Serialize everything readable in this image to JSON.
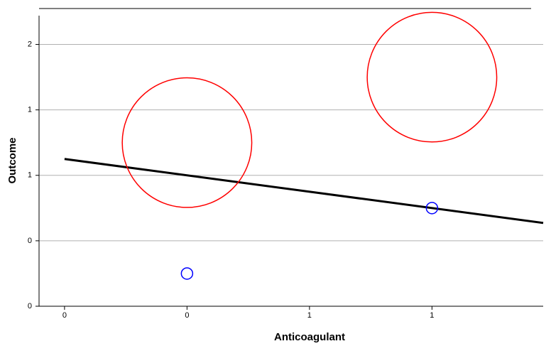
{
  "chart_data": {
    "type": "scatter",
    "x_label": "Anticoagulant",
    "y_label": "Outcome",
    "xlim": [
      -0.604,
      1.454
    ],
    "ylim": [
      0,
      2.22
    ],
    "xticks": [
      {
        "value": -0.5,
        "label": "0"
      },
      {
        "value": 0,
        "label": "0"
      },
      {
        "value": 0.5,
        "label": "1"
      },
      {
        "value": 1,
        "label": "1"
      }
    ],
    "yticks": [
      0,
      {
        "value": 0.5,
        "label": "0"
      },
      {
        "value": 1,
        "label": "1"
      },
      {
        "value": 1.5,
        "label": "1"
      },
      2
    ],
    "grid": true,
    "series": [
      {
        "color": "#0000ff",
        "x": [
          0,
          1
        ],
        "values": [
          0.25,
          0.75
        ],
        "sizes": [
          1,
          1
        ]
      },
      {
        "color": "#ff0000",
        "x": [
          0,
          1
        ],
        "values": [
          1.25,
          1.75
        ],
        "sizes": [
          130,
          130
        ]
      }
    ],
    "fit_line": {
      "color": "#000000",
      "x": [
        -0.5,
        1.454
      ],
      "values": [
        1.125,
        0.6365
      ]
    }
  }
}
